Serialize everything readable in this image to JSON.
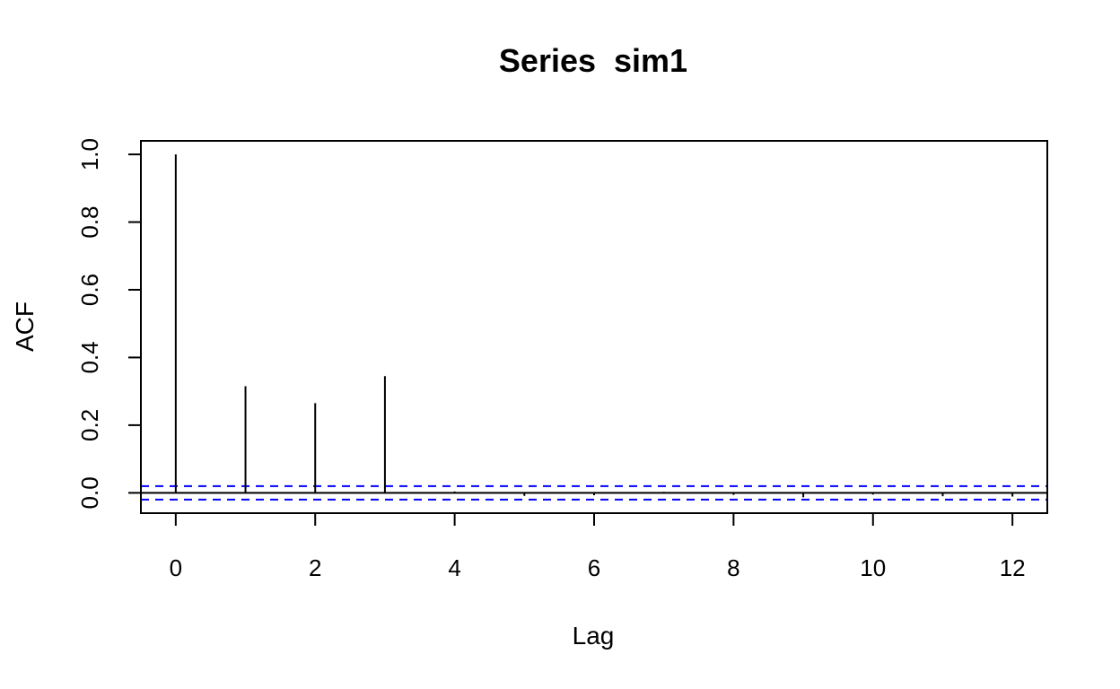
{
  "chart_data": {
    "type": "bar",
    "title": "Series  sim1",
    "xlabel": "Lag",
    "ylabel": "ACF",
    "x": [
      0,
      1,
      2,
      3,
      4,
      5,
      6,
      7,
      8,
      9,
      10,
      11,
      12
    ],
    "values": [
      1.0,
      0.315,
      0.265,
      0.345,
      0.004,
      -0.009,
      -0.007,
      0.003,
      -0.006,
      -0.013,
      -0.005,
      -0.01,
      -0.011
    ],
    "xlim": [
      -0.5,
      12.5
    ],
    "ylim": [
      -0.06,
      1.04
    ],
    "x_ticks": [
      0,
      2,
      4,
      6,
      8,
      10,
      12
    ],
    "x_tick_labels": [
      "0",
      "2",
      "4",
      "6",
      "8",
      "10",
      "12"
    ],
    "y_ticks": [
      0.0,
      0.2,
      0.4,
      0.6,
      0.8,
      1.0
    ],
    "y_tick_labels": [
      "0.0",
      "0.2",
      "0.4",
      "0.6",
      "0.8",
      "1.0"
    ],
    "confidence_bounds": [
      0.02,
      -0.02
    ],
    "bound_color": "#0000ff",
    "line_color": "#000000",
    "grid": false,
    "legend": "none"
  }
}
